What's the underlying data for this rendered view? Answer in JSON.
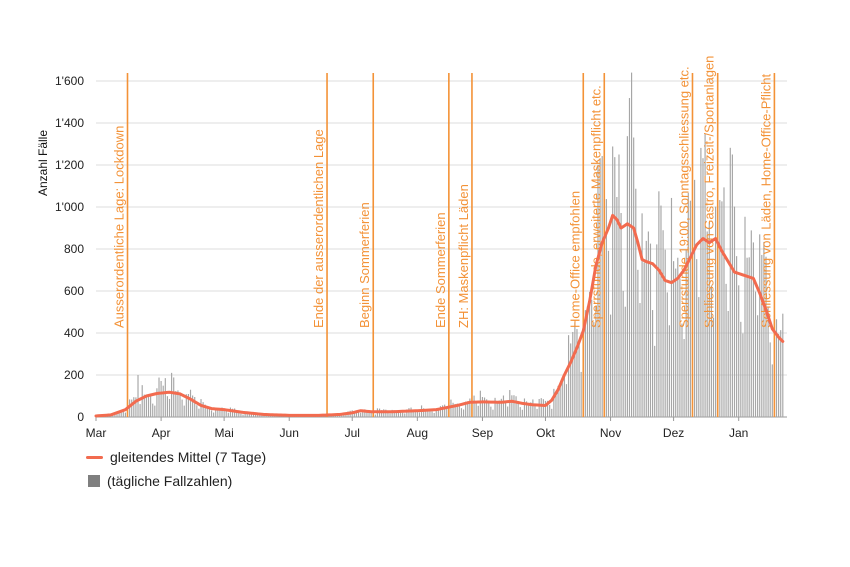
{
  "chart_data": {
    "type": "bar",
    "ylabel": "Anzahl Fälle",
    "ylim": [
      0,
      1600
    ],
    "yticks": [
      0,
      200,
      400,
      600,
      800,
      1000,
      1200,
      1400,
      1600
    ],
    "ytick_labels": [
      "0",
      "200",
      "400",
      "600",
      "800",
      "1'000",
      "1'200",
      "1'400",
      "1'600"
    ],
    "x_start": "2020-03-01",
    "x_end": "2021-01-24",
    "xtick_labels": [
      {
        "label": "Mar",
        "date": "2020-03-01"
      },
      {
        "label": "Apr",
        "date": "2020-04-01"
      },
      {
        "label": "Mai",
        "date": "2020-05-01"
      },
      {
        "label": "Jun",
        "date": "2020-06-01"
      },
      {
        "label": "Jul",
        "date": "2020-07-01"
      },
      {
        "label": "Aug",
        "date": "2020-08-01"
      },
      {
        "label": "Sep",
        "date": "2020-09-01"
      },
      {
        "label": "Okt",
        "date": "2020-10-01"
      },
      {
        "label": "Nov",
        "date": "2020-11-01"
      },
      {
        "label": "Dez",
        "date": "2020-12-01"
      },
      {
        "label": "Jan",
        "date": "2021-01-01"
      }
    ],
    "grid": true,
    "legend_position": "bottom-left",
    "colors": {
      "bars": "#a6a6a6",
      "line": "#f26b4f",
      "event": "#f39237",
      "legend_box": "#7f7f7f"
    },
    "series": [
      {
        "name": "gleitendes Mittel (7 Tage)",
        "type": "line",
        "anchors": [
          [
            "2020-03-01",
            5
          ],
          [
            "2020-03-08",
            10
          ],
          [
            "2020-03-15",
            35
          ],
          [
            "2020-03-20",
            75
          ],
          [
            "2020-03-25",
            100
          ],
          [
            "2020-03-30",
            112
          ],
          [
            "2020-04-05",
            118
          ],
          [
            "2020-04-10",
            110
          ],
          [
            "2020-04-15",
            85
          ],
          [
            "2020-04-20",
            55
          ],
          [
            "2020-04-25",
            40
          ],
          [
            "2020-05-01",
            35
          ],
          [
            "2020-05-10",
            22
          ],
          [
            "2020-05-20",
            12
          ],
          [
            "2020-06-01",
            8
          ],
          [
            "2020-06-15",
            8
          ],
          [
            "2020-06-25",
            12
          ],
          [
            "2020-07-01",
            20
          ],
          [
            "2020-07-05",
            30
          ],
          [
            "2020-07-10",
            25
          ],
          [
            "2020-07-20",
            25
          ],
          [
            "2020-08-01",
            30
          ],
          [
            "2020-08-10",
            35
          ],
          [
            "2020-08-15",
            45
          ],
          [
            "2020-08-20",
            55
          ],
          [
            "2020-08-26",
            70
          ],
          [
            "2020-09-01",
            72
          ],
          [
            "2020-09-10",
            70
          ],
          [
            "2020-09-15",
            75
          ],
          [
            "2020-09-20",
            65
          ],
          [
            "2020-09-25",
            58
          ],
          [
            "2020-10-01",
            55
          ],
          [
            "2020-10-04",
            80
          ],
          [
            "2020-10-07",
            130
          ],
          [
            "2020-10-10",
            200
          ],
          [
            "2020-10-13",
            260
          ],
          [
            "2020-10-16",
            330
          ],
          [
            "2020-10-19",
            410
          ],
          [
            "2020-10-22",
            550
          ],
          [
            "2020-10-25",
            720
          ],
          [
            "2020-10-28",
            830
          ],
          [
            "2020-10-31",
            900
          ],
          [
            "2020-11-02",
            960
          ],
          [
            "2020-11-04",
            940
          ],
          [
            "2020-11-06",
            900
          ],
          [
            "2020-11-09",
            920
          ],
          [
            "2020-11-12",
            900
          ],
          [
            "2020-11-14",
            830
          ],
          [
            "2020-11-16",
            750
          ],
          [
            "2020-11-18",
            740
          ],
          [
            "2020-11-21",
            730
          ],
          [
            "2020-11-24",
            700
          ],
          [
            "2020-11-27",
            650
          ],
          [
            "2020-11-30",
            640
          ],
          [
            "2020-12-03",
            660
          ],
          [
            "2020-12-06",
            700
          ],
          [
            "2020-12-09",
            760
          ],
          [
            "2020-12-12",
            820
          ],
          [
            "2020-12-15",
            850
          ],
          [
            "2020-12-18",
            830
          ],
          [
            "2020-12-21",
            850
          ],
          [
            "2020-12-24",
            790
          ],
          [
            "2020-12-27",
            740
          ],
          [
            "2020-12-30",
            690
          ],
          [
            "2021-01-02",
            680
          ],
          [
            "2021-01-05",
            670
          ],
          [
            "2021-01-08",
            660
          ],
          [
            "2021-01-11",
            590
          ],
          [
            "2021-01-14",
            510
          ],
          [
            "2021-01-17",
            420
          ],
          [
            "2021-01-20",
            380
          ],
          [
            "2021-01-22",
            360
          ]
        ]
      },
      {
        "name": "(tägliche Fallzahlen)",
        "type": "bar",
        "note": "daily bars follow the moving average with day-to-day scatter; visible peaks listed",
        "peaks": [
          [
            "2020-03-21",
            200
          ],
          [
            "2020-04-03",
            185
          ],
          [
            "2020-11-05",
            1250
          ],
          [
            "2020-11-11",
            1640
          ],
          [
            "2020-12-16",
            1350
          ],
          [
            "2020-12-29",
            1250
          ]
        ]
      }
    ],
    "events": [
      {
        "date": "2020-03-16",
        "label": "Ausserordentliche Lage: Lockdown"
      },
      {
        "date": "2020-06-19",
        "label": "Ende der ausserordentlichen Lage"
      },
      {
        "date": "2020-07-11",
        "label": "Beginn Sommerferien"
      },
      {
        "date": "2020-08-16",
        "label": "Ende Sommerferien"
      },
      {
        "date": "2020-08-27",
        "label": "ZH: Maskenpflicht Läden"
      },
      {
        "date": "2020-10-19",
        "label": "Home-Office empfohlen"
      },
      {
        "date": "2020-10-29",
        "label": "Sperrstunde, erweiterte Maskenpflicht etc."
      },
      {
        "date": "2020-12-10",
        "label": "Sperrstunde 19:00, Sonntagsschliessung etc."
      },
      {
        "date": "2020-12-22",
        "label": "Schliessung von Gastro, Freizeit-/Sportanlagen"
      },
      {
        "date": "2021-01-18",
        "label": "Schliessung von Läden, Home-Office-Pflicht"
      }
    ]
  },
  "legend": {
    "line_label": "gleitendes Mittel (7 Tage)",
    "bar_label": "(tägliche Fallzahlen)"
  }
}
